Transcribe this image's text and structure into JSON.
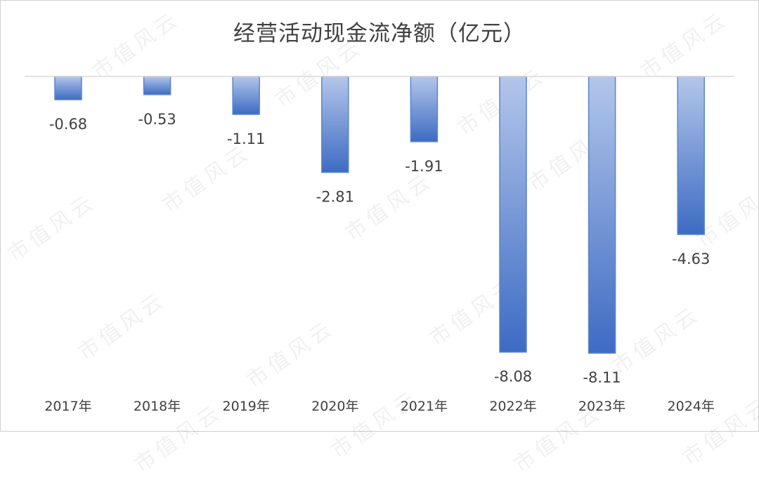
{
  "watermark": "市值风云",
  "chart_data": {
    "type": "bar",
    "title": "经营活动现金流净额（亿元）",
    "categories": [
      "2017年",
      "2018年",
      "2019年",
      "2020年",
      "2021年",
      "2022年",
      "2023年",
      "2024年"
    ],
    "values": [
      -0.68,
      -0.53,
      -1.11,
      -2.81,
      -1.91,
      -8.08,
      -8.11,
      -4.63
    ],
    "data_labels": [
      "-0.68",
      "-0.53",
      "-1.11",
      "-2.81",
      "-1.91",
      "-8.08",
      "-8.11",
      "-4.63"
    ],
    "xlabel": "",
    "ylabel": "",
    "ylim": [
      -8.11,
      0
    ],
    "grid": false,
    "legend": "none",
    "colors": {
      "bar_top": "#b3c6ea",
      "bar_bottom": "#3d6bc3",
      "bar_border": "#5b84d0",
      "axis": "#d9d9d9",
      "text": "#404040"
    }
  }
}
